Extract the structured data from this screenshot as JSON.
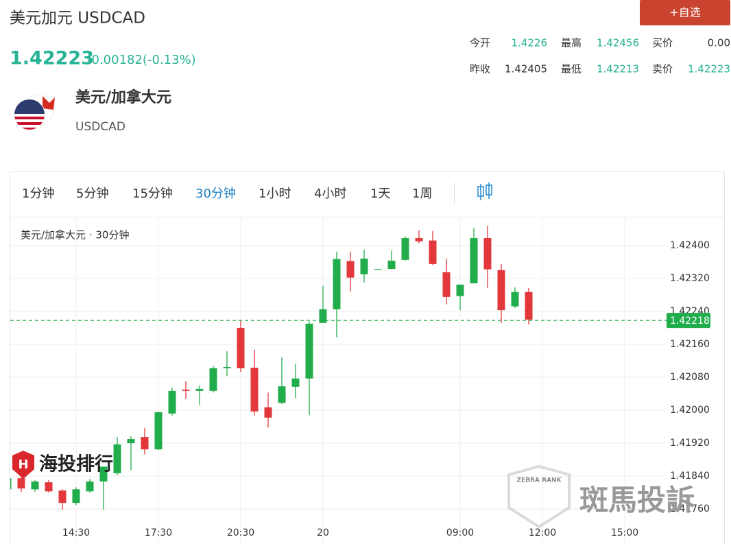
{
  "header": {
    "title": "美元加元 USDCAD",
    "price": "1.42223",
    "change": "-0.00182(-0.13%)",
    "button": "+自选"
  },
  "stats": [
    [
      "今开",
      "1.4226",
      "最高",
      "1.42456",
      "买价",
      "0.00"
    ],
    [
      "昨收",
      "1.42405",
      "最低",
      "1.42213",
      "卖价",
      "1.42223"
    ]
  ],
  "instrument": {
    "name": "美元/加拿大元",
    "code": "USDCAD"
  },
  "tabs": {
    "items": [
      "1分钟",
      "5分钟",
      "15分钟",
      "30分钟",
      "1小时",
      "4小时",
      "1天",
      "1周"
    ],
    "active": 3
  },
  "watermarks": [
    "海投排行",
    "斑馬投訴",
    "ZEBRA RANK"
  ],
  "chart_data": {
    "type": "candlestick",
    "title": "美元/加拿大元 · 30分钟",
    "categories": [
      null,
      null,
      null,
      null,
      null,
      "14:30",
      null,
      null,
      null,
      null,
      null,
      "17:30",
      null,
      null,
      null,
      null,
      null,
      "20:30",
      null,
      null,
      null,
      null,
      null,
      "20",
      null,
      null,
      null,
      null,
      null,
      null,
      null,
      null,
      null,
      "09:00",
      null,
      null,
      null,
      null,
      null,
      "12:00",
      null,
      null,
      null,
      null,
      null,
      "15:00",
      null,
      null
    ],
    "open": [
      1.41808,
      1.41835,
      1.41808,
      1.41825,
      1.41805,
      1.41775,
      1.41803,
      1.41827,
      1.41847,
      1.4192,
      1.41935,
      1.41905,
      1.41992,
      1.4205,
      1.42047,
      1.42047,
      1.42102,
      1.422,
      1.42103,
      1.42007,
      1.42018,
      1.42057,
      1.42077,
      1.42212,
      1.42245,
      1.42362,
      1.4233,
      1.42343,
      1.42343,
      1.42365,
      1.42418,
      1.42412,
      1.42335,
      1.42277,
      1.42308,
      1.42418,
      1.4234,
      1.42252,
      1.42287,
      null,
      null,
      null,
      null,
      null,
      null,
      null,
      null,
      null
    ],
    "high": [
      1.41847,
      1.41847,
      1.4183,
      1.4183,
      1.41808,
      1.41813,
      1.41833,
      1.41863,
      1.41935,
      1.41937,
      1.41957,
      1.41997,
      1.42055,
      1.4207,
      1.4206,
      1.42107,
      1.42143,
      1.42218,
      1.42147,
      1.42043,
      1.42128,
      1.42113,
      1.42215,
      1.42302,
      1.42385,
      1.42385,
      1.4239,
      1.42343,
      1.42388,
      1.42422,
      1.42437,
      1.42435,
      1.42368,
      1.42305,
      1.42442,
      1.42448,
      1.42355,
      1.42298,
      1.42297,
      null,
      null,
      null,
      null,
      null,
      null,
      null,
      null,
      null
    ],
    "low": [
      1.41805,
      1.41802,
      1.41802,
      1.418,
      1.41758,
      1.4177,
      1.418,
      1.41758,
      1.41842,
      1.41855,
      1.41893,
      1.41903,
      1.41987,
      1.42027,
      1.42013,
      1.42043,
      1.42083,
      1.42093,
      1.41987,
      1.41958,
      1.42015,
      1.4203,
      1.41988,
      1.42212,
      1.42177,
      1.42288,
      1.4231,
      1.42343,
      1.42342,
      1.42363,
      1.42405,
      1.42353,
      1.42257,
      1.42243,
      1.42308,
      1.42297,
      1.42212,
      1.42248,
      1.42208,
      null,
      null,
      null,
      null,
      null,
      null,
      null,
      null,
      null
    ],
    "close": [
      1.41835,
      1.4181,
      1.41827,
      1.41803,
      1.41775,
      1.41808,
      1.41827,
      1.41863,
      1.41917,
      1.4193,
      1.41905,
      1.41995,
      1.42047,
      1.42047,
      1.42052,
      1.42102,
      1.42105,
      1.42102,
      1.41997,
      1.41982,
      1.42058,
      1.42077,
      1.4221,
      1.42245,
      1.42367,
      1.42322,
      1.42368,
      1.42343,
      1.42363,
      1.42418,
      1.4241,
      1.42355,
      1.42275,
      1.42305,
      1.42418,
      1.42342,
      1.42243,
      1.42287,
      1.4222,
      null,
      null,
      null,
      null,
      null,
      null,
      null,
      null,
      null
    ],
    "ylim": [
      1.41722,
      1.42468
    ],
    "yticks": [
      {
        "value": 1.424,
        "label": "1.42400"
      },
      {
        "value": 1.4232,
        "label": "1.42320"
      },
      {
        "value": 1.4224,
        "label": "1.42240"
      },
      {
        "value": 1.4216,
        "label": "1.42160"
      },
      {
        "value": 1.4208,
        "label": "1.42080"
      },
      {
        "value": 1.42,
        "label": "1.42000"
      },
      {
        "value": 1.4192,
        "label": "1.41920"
      },
      {
        "value": 1.4184,
        "label": "1.41840"
      },
      {
        "value": 1.4176,
        "label": "1.41760"
      }
    ],
    "last_price": {
      "value": 1.42218,
      "label": "1.42218"
    },
    "up_color": "#21ad4b",
    "down_color": "#e2383c",
    "grid": true
  }
}
